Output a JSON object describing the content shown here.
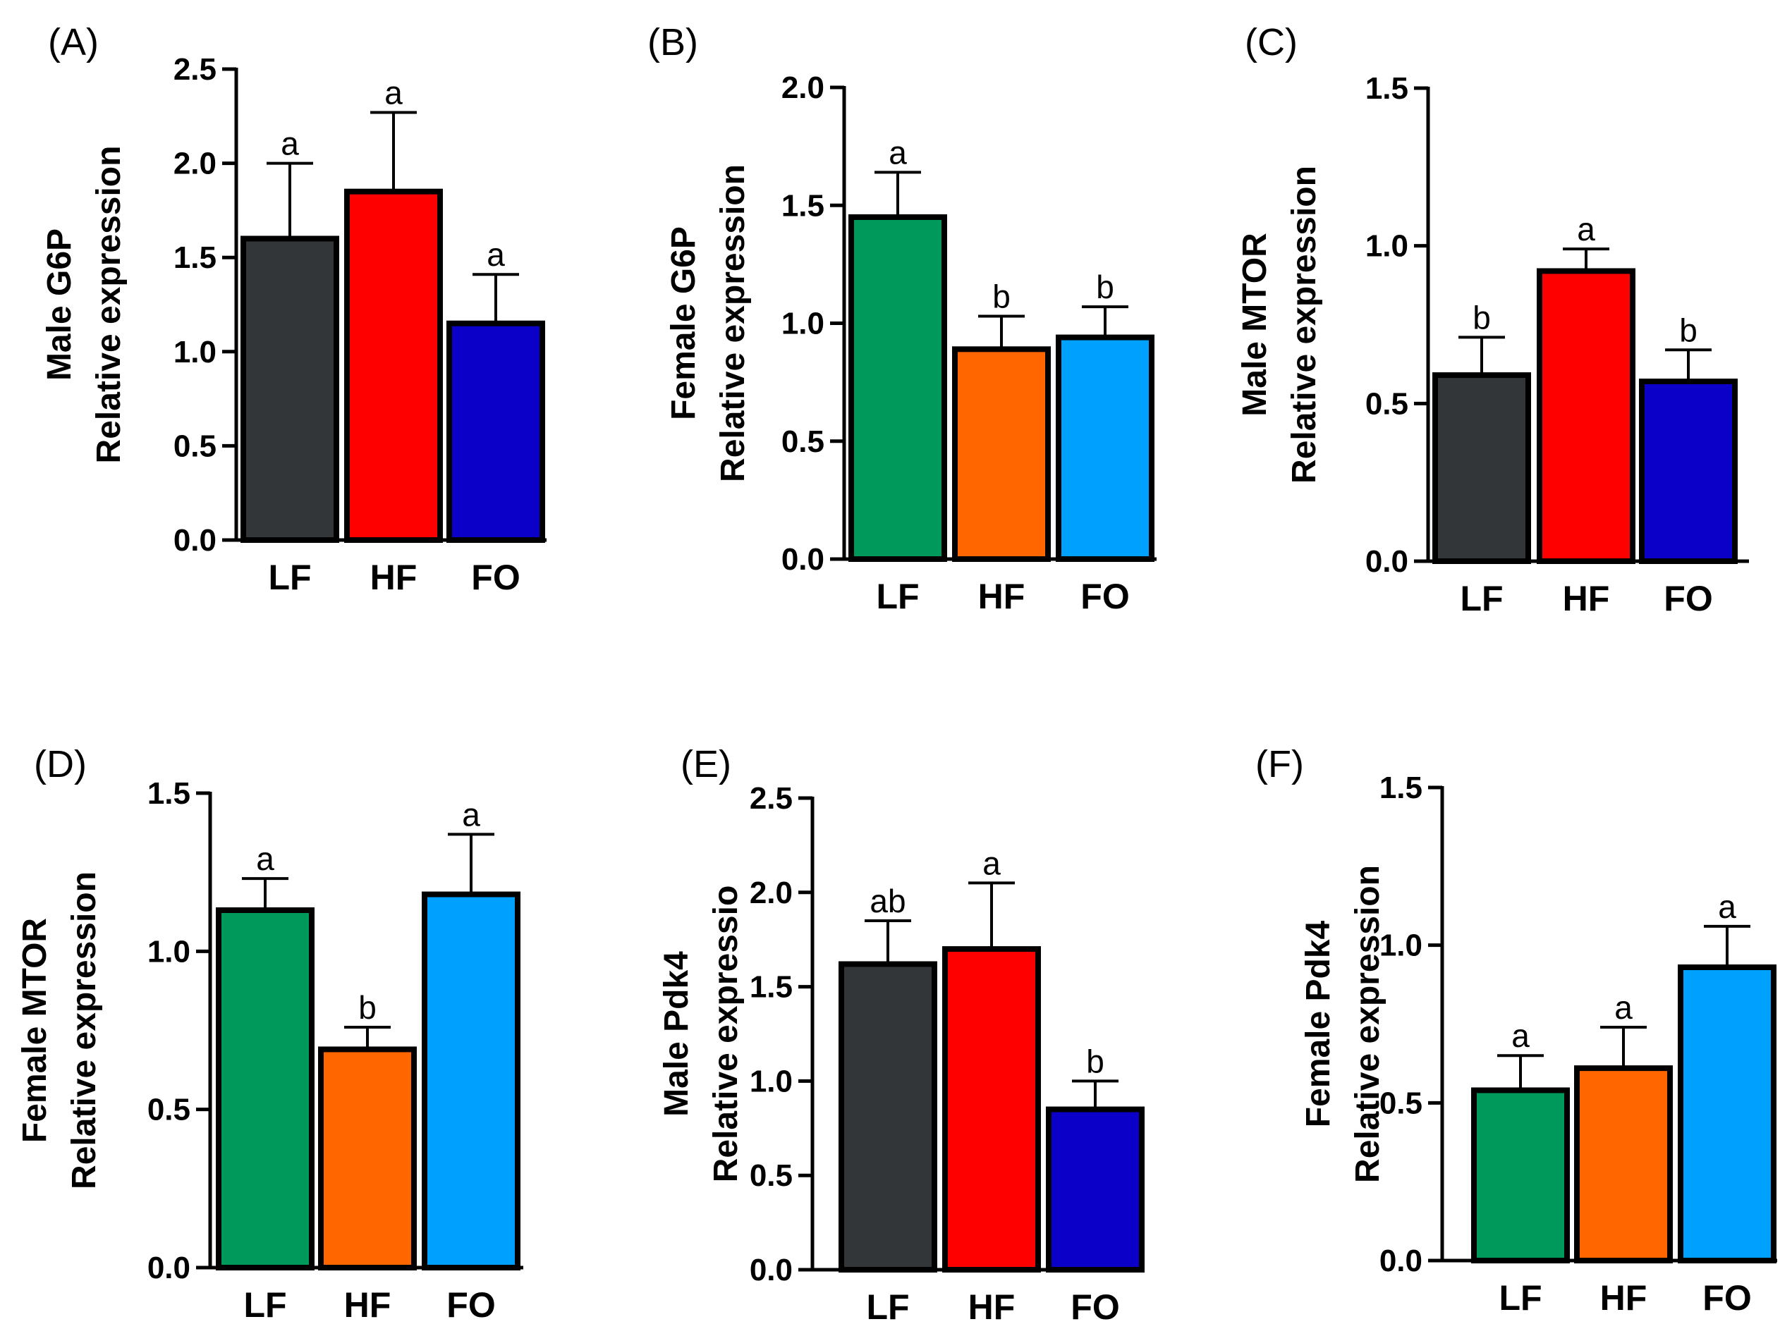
{
  "colors": {
    "LF_male": "#323639",
    "HF_male": "#ff0000",
    "FO_male": "#0a00c8",
    "LF_female": "#00995c",
    "HF_female": "#ff6600",
    "FO_female": "#00a0ff",
    "axis": "#000000"
  },
  "chart_data": [
    {
      "type": "bar",
      "panel": "(A)",
      "ylabel_line1": "Male G6P",
      "ylabel_line2": "Relative expression",
      "categories": [
        "LF",
        "HF",
        "FO"
      ],
      "values": [
        1.6,
        1.85,
        1.15
      ],
      "errors": [
        0.4,
        0.42,
        0.26
      ],
      "significance": [
        "a",
        "a",
        "a"
      ],
      "ylim": [
        0,
        2.5
      ],
      "yticks": [
        "0.0",
        "0.5",
        "1.0",
        "1.5",
        "2.0",
        "2.5"
      ],
      "bar_colors": [
        "#323639",
        "#ff0000",
        "#0a00c8"
      ]
    },
    {
      "type": "bar",
      "panel": "(B)",
      "ylabel_line1": "Female G6P",
      "ylabel_line2": "Relative expression",
      "categories": [
        "LF",
        "HF",
        "FO"
      ],
      "values": [
        1.45,
        0.89,
        0.94
      ],
      "errors": [
        0.19,
        0.14,
        0.13
      ],
      "significance": [
        "a",
        "b",
        "b"
      ],
      "ylim": [
        0,
        2.0
      ],
      "yticks": [
        "0.0",
        "0.5",
        "1.0",
        "1.5",
        "2.0"
      ],
      "bar_colors": [
        "#00995c",
        "#ff6600",
        "#00a0ff"
      ]
    },
    {
      "type": "bar",
      "panel": "(C)",
      "ylabel_line1": "Male MTOR",
      "ylabel_line2": "Relative expression",
      "categories": [
        "LF",
        "HF",
        "FO"
      ],
      "values": [
        0.59,
        0.92,
        0.57
      ],
      "errors": [
        0.12,
        0.07,
        0.1
      ],
      "significance": [
        "b",
        "a",
        "b"
      ],
      "ylim": [
        0,
        1.5
      ],
      "yticks": [
        "0.0",
        "0.5",
        "1.0",
        "1.5"
      ],
      "bar_colors": [
        "#323639",
        "#ff0000",
        "#0a00c8"
      ]
    },
    {
      "type": "bar",
      "panel": "(D)",
      "ylabel_line1": "Female MTOR",
      "ylabel_line2": "Relative expression",
      "categories": [
        "LF",
        "HF",
        "FO"
      ],
      "values": [
        1.13,
        0.69,
        1.18
      ],
      "errors": [
        0.1,
        0.07,
        0.19
      ],
      "significance": [
        "a",
        "b",
        "a"
      ],
      "ylim": [
        0,
        1.5
      ],
      "yticks": [
        "0.0",
        "0.5",
        "1.0",
        "1.5"
      ],
      "bar_colors": [
        "#00995c",
        "#ff6600",
        "#00a0ff"
      ]
    },
    {
      "type": "bar",
      "panel": "(E)",
      "ylabel_line1": "Male Pdk4",
      "ylabel_line2": "Relative expressio",
      "categories": [
        "LF",
        "HF",
        "FO"
      ],
      "values": [
        1.62,
        1.7,
        0.85
      ],
      "errors": [
        0.23,
        0.35,
        0.15
      ],
      "significance": [
        "ab",
        "a",
        "b"
      ],
      "ylim": [
        0,
        2.5
      ],
      "yticks": [
        "0.0",
        "0.5",
        "1.0",
        "1.5",
        "2.0",
        "2.5"
      ],
      "bar_colors": [
        "#323639",
        "#ff0000",
        "#0a00c8"
      ]
    },
    {
      "type": "bar",
      "panel": "(F)",
      "ylabel_line1": "Female Pdk4",
      "ylabel_line2": "Relative expression",
      "categories": [
        "LF",
        "HF",
        "FO"
      ],
      "values": [
        0.54,
        0.61,
        0.93
      ],
      "errors": [
        0.11,
        0.13,
        0.13
      ],
      "significance": [
        "a",
        "a",
        "a"
      ],
      "ylim": [
        0,
        1.5
      ],
      "yticks": [
        "0.0",
        "0.5",
        "1.0",
        "1.5"
      ],
      "bar_colors": [
        "#00995c",
        "#ff6600",
        "#00a0ff"
      ]
    }
  ]
}
